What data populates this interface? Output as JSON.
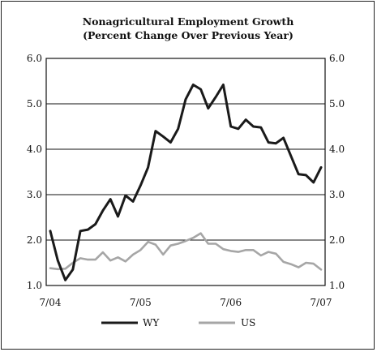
{
  "chart_data": {
    "type": "line",
    "title": "Nonagricultural Employment Growth",
    "subtitle": "(Percent Change Over Previous Year)",
    "xlabel": "",
    "ylabel": "",
    "ylim": [
      1.0,
      6.0
    ],
    "y_ticks": [
      "1.0",
      "2.0",
      "3.0",
      "4.0",
      "5.0",
      "6.0"
    ],
    "x_ticks": [
      "7/04",
      "7/05",
      "7/06",
      "7/07"
    ],
    "grid": "horizontal",
    "legend_position": "bottom",
    "x": [
      "7/04",
      "8/04",
      "9/04",
      "10/04",
      "11/04",
      "12/04",
      "1/05",
      "2/05",
      "3/05",
      "4/05",
      "5/05",
      "6/05",
      "7/05",
      "8/05",
      "9/05",
      "10/05",
      "11/05",
      "12/05",
      "1/06",
      "2/06",
      "3/06",
      "4/06",
      "5/06",
      "6/06",
      "7/06",
      "8/06",
      "9/06",
      "10/06",
      "11/06",
      "12/06",
      "1/07",
      "2/07",
      "3/07",
      "4/07",
      "5/07",
      "6/07",
      "7/07"
    ],
    "series": [
      {
        "name": "WY",
        "color": "#1a1a1a",
        "values": [
          2.2,
          1.55,
          1.12,
          1.35,
          2.2,
          2.23,
          2.35,
          2.65,
          2.9,
          2.52,
          2.98,
          2.85,
          3.2,
          3.6,
          4.4,
          4.28,
          4.15,
          4.45,
          5.1,
          5.42,
          5.32,
          4.9,
          5.15,
          5.42,
          4.5,
          4.45,
          4.65,
          4.5,
          4.48,
          4.15,
          4.13,
          4.25,
          3.85,
          3.45,
          3.43,
          3.27,
          3.6
        ]
      },
      {
        "name": "US",
        "color": "#a6a6a6",
        "values": [
          1.38,
          1.36,
          1.37,
          1.5,
          1.6,
          1.57,
          1.57,
          1.73,
          1.55,
          1.62,
          1.53,
          1.68,
          1.78,
          1.96,
          1.9,
          1.68,
          1.88,
          1.92,
          1.98,
          2.05,
          2.15,
          1.92,
          1.92,
          1.8,
          1.76,
          1.74,
          1.78,
          1.78,
          1.66,
          1.74,
          1.7,
          1.52,
          1.47,
          1.4,
          1.5,
          1.48,
          1.35
        ]
      }
    ]
  }
}
